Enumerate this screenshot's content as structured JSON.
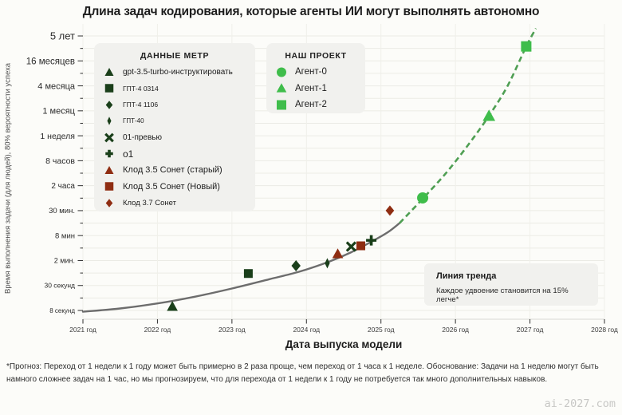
{
  "title": "Длина задач кодирования, которые агенты ИИ могут выполнять автономно",
  "watermark": "ai-2027.com",
  "footnote": "*Прогноз: Переход от 1 недели к 1 году может быть примерно в 2 раза проще, чем переход от 1 часа к 1 неделе. Обоснование: Задачи на 1 неделю могут быть намного сложнее задач на 1 час, но мы прогнозируем, что для перехода от 1 недели к 1 году не потребуется так много дополнительных навыков.",
  "chart_data": {
    "type": "scatter",
    "title": "Длина задач кодирования, которые агенты ИИ могут выполнять автономно",
    "xlabel": "Дата выпуска модели",
    "ylabel": "Время выполнения задачи (для людей), 80% вероятности успеха",
    "grid": true,
    "x_range": [
      2021,
      2028
    ],
    "x_tick_labels": [
      "2021 год",
      "2022 год",
      "2023 год",
      "2024 год",
      "2025 год",
      "2026 год",
      "2027 год",
      "2028 год"
    ],
    "x_tick_years": [
      2021,
      2022,
      2023,
      2024,
      2025,
      2026,
      2027,
      2028
    ],
    "y_tick_labels": [
      "8 секунд",
      "30 секунд",
      "2 мин.",
      "8 мин",
      "30 мин.",
      "2 часа",
      "8 часов",
      "1 неделя",
      "1 месяц",
      "4 месяца",
      "16 месяцев",
      "5 лет"
    ],
    "y_tick_font_px": [
      8,
      8.5,
      9,
      9.5,
      9.5,
      10,
      10.5,
      10.5,
      11,
      11,
      11.5,
      13
    ],
    "legend_groups": [
      {
        "id": "metr",
        "title": "ДАННЫЕ МЕТР"
      },
      {
        "id": "project",
        "title": "НАШ ПРОЕКТ"
      }
    ],
    "colors": {
      "metr_green": "#1a3f1a",
      "claude_red": "#8f2d12",
      "agent_green": "#3fbd4b",
      "trend_solid": "#6d6d6d",
      "trend_dashed": "#4f9f53",
      "grid_line": "#ebebe5",
      "legend_bg": "#f1f1ee"
    },
    "series": [
      {
        "name": "gpt-3.5-turbo-инструктировать",
        "group": "metr",
        "marker": "triangle",
        "color": "#1a3f1a",
        "date": 2022.2,
        "y_idx": 0.16,
        "duration_approx": "~10 секунд",
        "marker_px": 13,
        "legend_font_px": 10
      },
      {
        "name": "ГПТ-4 0314",
        "group": "metr",
        "marker": "square",
        "color": "#1a3f1a",
        "date": 2023.22,
        "y_idx": 1.48,
        "duration_approx": "~1 мин",
        "marker_px": 11,
        "legend_font_px": 8.5
      },
      {
        "name": "ГПТ-4 1106",
        "group": "metr",
        "marker": "diamond",
        "color": "#1a3f1a",
        "date": 2023.86,
        "y_idx": 1.79,
        "duration_approx": "~1.5 мин",
        "marker_px": 14,
        "legend_font_px": 8.5
      },
      {
        "name": "ГПТ-40",
        "group": "metr",
        "marker": "thin-diamond",
        "color": "#1a3f1a",
        "date": 2024.28,
        "y_idx": 1.89,
        "duration_approx": "~2 мин",
        "marker_px": 13,
        "legend_font_px": 8
      },
      {
        "name": "01-превью",
        "group": "metr",
        "marker": "x",
        "color": "#1a3f1a",
        "date": 2024.6,
        "y_idx": 2.56,
        "duration_approx": "~5 мин",
        "marker_px": 11,
        "legend_font_px": 10
      },
      {
        "name": "o1",
        "group": "metr",
        "marker": "plus",
        "color": "#1a3f1a",
        "date": 2024.87,
        "y_idx": 2.81,
        "duration_approx": "~7 мин",
        "marker_px": 13,
        "legend_font_px": 12
      },
      {
        "name": "Клод 3.5 Сонет (старый)",
        "group": "metr",
        "marker": "triangle",
        "color": "#8f2d12",
        "date": 2024.42,
        "y_idx": 2.27,
        "duration_approx": "~4 мин",
        "marker_px": 13,
        "legend_font_px": 11
      },
      {
        "name": "Клод 3.5 Сонет (Новый)",
        "group": "metr",
        "marker": "square",
        "color": "#8f2d12",
        "date": 2024.73,
        "y_idx": 2.59,
        "duration_approx": "~6 мин",
        "marker_px": 11,
        "legend_font_px": 11
      },
      {
        "name": "Клод 3.7 Сонет",
        "group": "metr",
        "marker": "diamond",
        "color": "#8f2d12",
        "date": 2025.12,
        "y_idx": 4.0,
        "duration_approx": "~30 мин",
        "marker_px": 13,
        "legend_font_px": 9.5
      },
      {
        "name": "Агент-0",
        "group": "project",
        "marker": "circle",
        "color": "#3fbd4b",
        "date": 2025.56,
        "y_idx": 4.51,
        "duration_approx": "~1 час",
        "marker_px": 14,
        "legend_font_px": 11.5
      },
      {
        "name": "Агент-1",
        "group": "project",
        "marker": "triangle",
        "color": "#3fbd4b",
        "date": 2026.45,
        "y_idx": 7.8,
        "duration_approx": "~1 месяц",
        "marker_px": 15,
        "legend_font_px": 11.5
      },
      {
        "name": "Агент-2",
        "group": "project",
        "marker": "square",
        "color": "#3fbd4b",
        "date": 2026.95,
        "y_idx": 10.58,
        "duration_approx": "~3 года",
        "marker_px": 13,
        "legend_font_px": 11.5
      }
    ],
    "trend": {
      "annotation_title": "Линия тренда",
      "annotation_text": "Каждое удвоение становится на 15% легче*",
      "solid": {
        "color": "#6d6d6d",
        "points": [
          [
            2021.0,
            -0.05
          ],
          [
            2021.5,
            0.08
          ],
          [
            2022.0,
            0.28
          ],
          [
            2022.5,
            0.55
          ],
          [
            2023.0,
            0.88
          ],
          [
            2023.5,
            1.25
          ],
          [
            2023.9,
            1.55
          ],
          [
            2024.3,
            1.95
          ],
          [
            2024.6,
            2.33
          ],
          [
            2024.9,
            2.8
          ],
          [
            2025.1,
            3.15
          ],
          [
            2025.25,
            3.5
          ]
        ]
      },
      "dashed": {
        "color": "#4f9f53",
        "points": [
          [
            2025.25,
            3.5
          ],
          [
            2025.6,
            4.6
          ],
          [
            2025.9,
            5.6
          ],
          [
            2026.2,
            6.75
          ],
          [
            2026.45,
            7.8
          ],
          [
            2026.7,
            9.0
          ],
          [
            2026.95,
            10.58
          ],
          [
            2027.08,
            11.3
          ]
        ]
      }
    }
  }
}
